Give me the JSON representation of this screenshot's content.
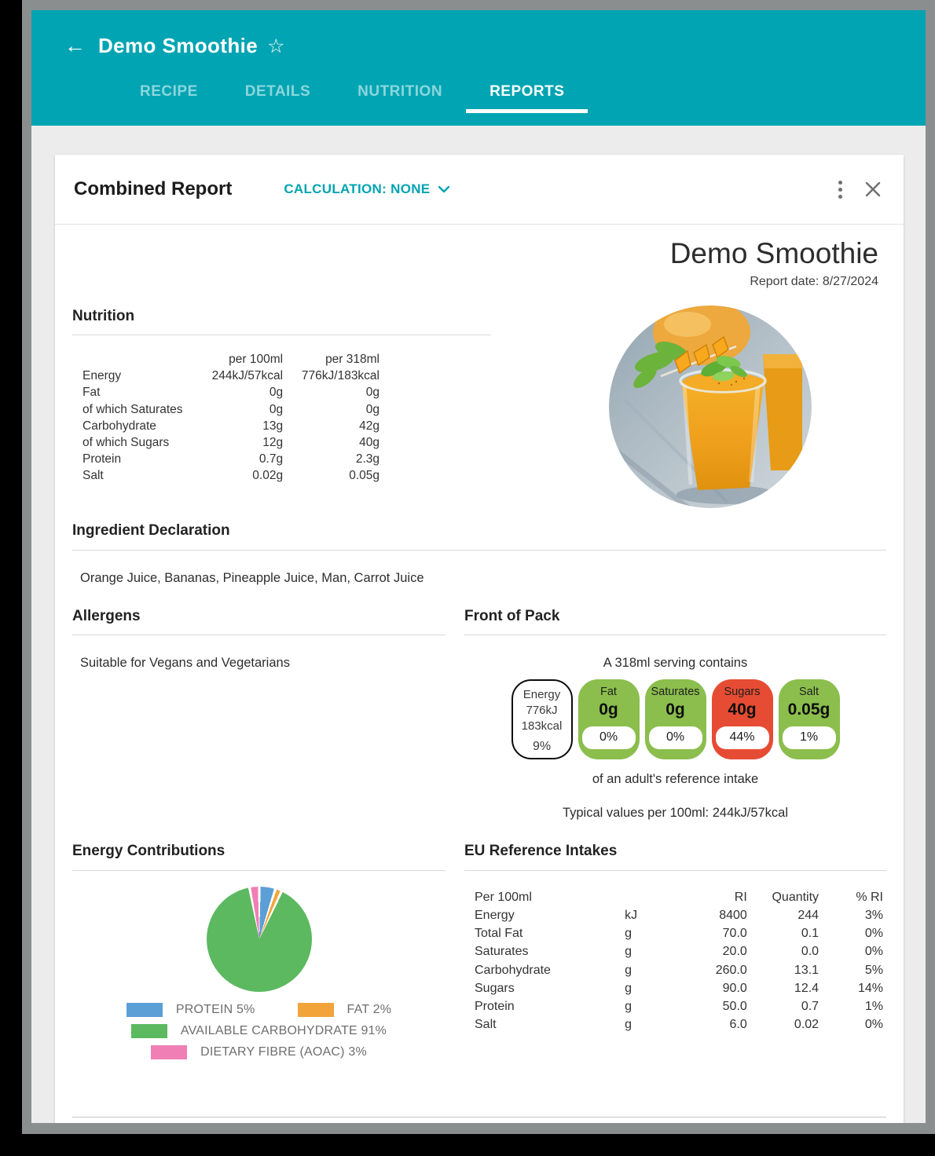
{
  "header": {
    "title": "Demo Smoothie",
    "back_icon": "←",
    "star_icon": "☆",
    "tabs": [
      {
        "label": "RECIPE",
        "active": false
      },
      {
        "label": "DETAILS",
        "active": false
      },
      {
        "label": "NUTRITION",
        "active": false
      },
      {
        "label": "REPORTS",
        "active": true
      }
    ]
  },
  "card": {
    "title": "Combined Report",
    "calculation_label": "CALCULATION: NONE"
  },
  "report": {
    "title": "Demo Smoothie",
    "date_label": "Report date: 8/27/2024",
    "nutrition": {
      "heading": "Nutrition",
      "columns": [
        "per 100ml",
        "per 318ml"
      ],
      "rows": [
        [
          "Energy",
          "244kJ/57kcal",
          "776kJ/183kcal"
        ],
        [
          "Fat",
          "0g",
          "0g"
        ],
        [
          "of which Saturates",
          "0g",
          "0g"
        ],
        [
          "Carbohydrate",
          "13g",
          "42g"
        ],
        [
          "of which Sugars",
          "12g",
          "40g"
        ],
        [
          "Protein",
          "0.7g",
          "2.3g"
        ],
        [
          "Salt",
          "0.02g",
          "0.05g"
        ]
      ]
    },
    "ingredients": {
      "heading": "Ingredient Declaration",
      "text": "Orange Juice, Bananas, Pineapple Juice, Man, Carrot Juice"
    },
    "allergens": {
      "heading": "Allergens",
      "text": "Suitable for Vegans and Vegetarians"
    },
    "fop": {
      "heading": "Front of Pack",
      "serving_text": "A 318ml serving contains",
      "colors": {
        "green": "#8bbe4d",
        "red": "#e64c33"
      },
      "labels": [
        {
          "type": "outline",
          "lines": [
            "Energy",
            "776kJ",
            "183kcal"
          ],
          "pct": "9%"
        },
        {
          "type": "color",
          "color": "green",
          "label": "Fat",
          "value": "0g",
          "pct": "0%"
        },
        {
          "type": "color",
          "color": "green",
          "label": "Saturates",
          "value": "0g",
          "pct": "0%"
        },
        {
          "type": "color",
          "color": "red",
          "label": "Sugars",
          "value": "40g",
          "pct": "44%"
        },
        {
          "type": "color",
          "color": "green",
          "label": "Salt",
          "value": "0.05g",
          "pct": "1%"
        }
      ],
      "footnote": "of an adult's reference intake",
      "typical_values": "Typical values per 100ml: 244kJ/57kcal"
    },
    "energy_contributions": {
      "heading": "Energy Contributions"
    },
    "eu_reference_intakes": {
      "heading": "EU Reference Intakes",
      "header": [
        "Per 100ml",
        "",
        "RI",
        "Quantity",
        "% RI"
      ],
      "rows": [
        [
          "Energy",
          "kJ",
          "8400",
          "244",
          "3%"
        ],
        [
          "Total Fat",
          "g",
          "70.0",
          "0.1",
          "0%"
        ],
        [
          "Saturates",
          "g",
          "20.0",
          "0.0",
          "0%"
        ],
        [
          "Carbohydrate",
          "g",
          "260.0",
          "13.1",
          "5%"
        ],
        [
          "Sugars",
          "g",
          "90.0",
          "12.4",
          "14%"
        ],
        [
          "Protein",
          "g",
          "50.0",
          "0.7",
          "1%"
        ],
        [
          "Salt",
          "g",
          "6.0",
          "0.02",
          "0%"
        ]
      ]
    }
  },
  "chart_data": {
    "type": "pie",
    "title": "Energy Contributions",
    "slices": [
      {
        "name": "PROTEIN",
        "value": 5,
        "color": "#5b9fd6"
      },
      {
        "name": "FAT",
        "value": 2,
        "color": "#f2a43a"
      },
      {
        "name": "AVAILABLE CARBOHYDRATE",
        "value": 91,
        "color": "#5cb960"
      },
      {
        "name": "DIETARY FIBRE (AOAC)",
        "value": 3,
        "color": "#ef7fb5"
      }
    ],
    "legend_rows": [
      [
        0,
        1
      ],
      [
        2
      ],
      [
        3
      ]
    ],
    "legend_position": "bottom",
    "start_angle_deg": 0,
    "slice_gap_deg": 3
  },
  "accent_colors": {
    "teal": "#00a4b2"
  }
}
